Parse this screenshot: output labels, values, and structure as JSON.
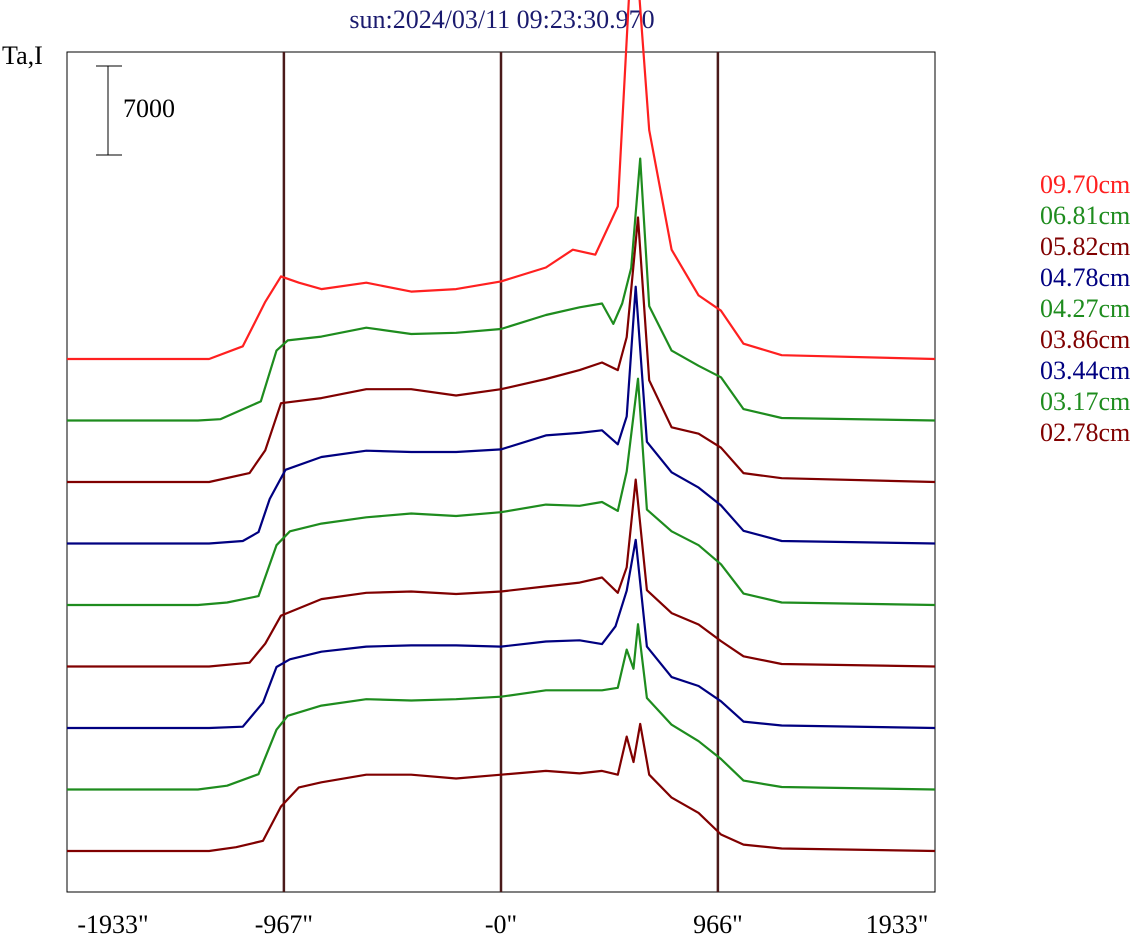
{
  "chart_data": {
    "type": "line",
    "title": "sun:2024/03/11 09:23:30.970",
    "ylabel": "Ta,I",
    "scale_bar_label": "7000",
    "x_ticks": [
      "-1933\"",
      "-967\"",
      "-0\"",
      "966\"",
      "1933\""
    ],
    "x_tick_values": [
      -1933,
      -967,
      0,
      966,
      1933
    ],
    "vertical_lines": [
      -967,
      0,
      966
    ],
    "xlim": [
      -1933,
      1933
    ],
    "grid": false,
    "legend_position": "right",
    "series": [
      {
        "name": "09.70cm",
        "color": "#ff2020",
        "points": [
          [
            -1933,
            0
          ],
          [
            -1300,
            0
          ],
          [
            -1150,
            1000
          ],
          [
            -1050,
            4500
          ],
          [
            -980,
            6500
          ],
          [
            -900,
            6000
          ],
          [
            -800,
            5500
          ],
          [
            -600,
            6000
          ],
          [
            -400,
            5300
          ],
          [
            -200,
            5500
          ],
          [
            0,
            6100
          ],
          [
            200,
            7200
          ],
          [
            320,
            8600
          ],
          [
            420,
            8200
          ],
          [
            520,
            12000
          ],
          [
            570,
            28500
          ],
          [
            610,
            30000
          ],
          [
            660,
            18000
          ],
          [
            760,
            8600
          ],
          [
            880,
            5000
          ],
          [
            980,
            3800
          ],
          [
            1080,
            1200
          ],
          [
            1250,
            300
          ],
          [
            1933,
            0
          ]
        ]
      },
      {
        "name": "06.81cm",
        "color": "#1e8c1e",
        "points": [
          [
            -1933,
            0
          ],
          [
            -1350,
            0
          ],
          [
            -1250,
            100
          ],
          [
            -1070,
            1500
          ],
          [
            -1000,
            5500
          ],
          [
            -950,
            6300
          ],
          [
            -800,
            6600
          ],
          [
            -600,
            7300
          ],
          [
            -400,
            6800
          ],
          [
            -200,
            6900
          ],
          [
            0,
            7200
          ],
          [
            200,
            8300
          ],
          [
            350,
            8900
          ],
          [
            450,
            9200
          ],
          [
            500,
            7600
          ],
          [
            540,
            9200
          ],
          [
            580,
            12000
          ],
          [
            620,
            20600
          ],
          [
            660,
            9000
          ],
          [
            760,
            5500
          ],
          [
            880,
            4300
          ],
          [
            980,
            3400
          ],
          [
            1080,
            900
          ],
          [
            1250,
            200
          ],
          [
            1933,
            0
          ]
        ]
      },
      {
        "name": "05.82cm",
        "color": "#800000",
        "points": [
          [
            -1933,
            0
          ],
          [
            -1750,
            0
          ],
          [
            -1300,
            0
          ],
          [
            -1120,
            700
          ],
          [
            -1050,
            2500
          ],
          [
            -980,
            6200
          ],
          [
            -800,
            6600
          ],
          [
            -600,
            7300
          ],
          [
            -400,
            7300
          ],
          [
            -200,
            6800
          ],
          [
            0,
            7300
          ],
          [
            200,
            8100
          ],
          [
            350,
            8800
          ],
          [
            450,
            9400
          ],
          [
            520,
            8800
          ],
          [
            560,
            11400
          ],
          [
            610,
            20800
          ],
          [
            660,
            8000
          ],
          [
            760,
            4300
          ],
          [
            880,
            3800
          ],
          [
            980,
            2700
          ],
          [
            1080,
            700
          ],
          [
            1250,
            300
          ],
          [
            1933,
            0
          ]
        ]
      },
      {
        "name": "04.78cm",
        "color": "#000080",
        "points": [
          [
            -1933,
            0
          ],
          [
            -1300,
            0
          ],
          [
            -1150,
            200
          ],
          [
            -1080,
            900
          ],
          [
            -1030,
            3500
          ],
          [
            -960,
            5800
          ],
          [
            -800,
            6800
          ],
          [
            -600,
            7300
          ],
          [
            -400,
            7200
          ],
          [
            -200,
            7200
          ],
          [
            0,
            7400
          ],
          [
            200,
            8500
          ],
          [
            350,
            8700
          ],
          [
            450,
            8900
          ],
          [
            520,
            7800
          ],
          [
            560,
            10000
          ],
          [
            600,
            20200
          ],
          [
            650,
            8000
          ],
          [
            760,
            5600
          ],
          [
            880,
            4400
          ],
          [
            980,
            3000
          ],
          [
            1080,
            1000
          ],
          [
            1250,
            200
          ],
          [
            1933,
            0
          ]
        ]
      },
      {
        "name": "04.27cm",
        "color": "#1e8c1e",
        "points": [
          [
            -1933,
            0
          ],
          [
            -1350,
            0
          ],
          [
            -1220,
            200
          ],
          [
            -1080,
            700
          ],
          [
            -1000,
            4700
          ],
          [
            -940,
            5800
          ],
          [
            -800,
            6400
          ],
          [
            -600,
            6900
          ],
          [
            -400,
            7200
          ],
          [
            -200,
            7000
          ],
          [
            0,
            7300
          ],
          [
            200,
            7900
          ],
          [
            350,
            7800
          ],
          [
            450,
            8100
          ],
          [
            520,
            7400
          ],
          [
            560,
            10500
          ],
          [
            610,
            17800
          ],
          [
            650,
            7500
          ],
          [
            760,
            5800
          ],
          [
            880,
            4700
          ],
          [
            980,
            3200
          ],
          [
            1080,
            900
          ],
          [
            1250,
            200
          ],
          [
            1933,
            0
          ]
        ]
      },
      {
        "name": "03.86cm",
        "color": "#800000",
        "points": [
          [
            -1933,
            0
          ],
          [
            -1650,
            0
          ],
          [
            -1300,
            0
          ],
          [
            -1120,
            300
          ],
          [
            -1050,
            1800
          ],
          [
            -980,
            4000
          ],
          [
            -800,
            5300
          ],
          [
            -600,
            5800
          ],
          [
            -400,
            5900
          ],
          [
            -200,
            5700
          ],
          [
            0,
            5900
          ],
          [
            200,
            6300
          ],
          [
            350,
            6600
          ],
          [
            450,
            7000
          ],
          [
            520,
            5800
          ],
          [
            560,
            7800
          ],
          [
            600,
            14700
          ],
          [
            650,
            6000
          ],
          [
            760,
            4200
          ],
          [
            880,
            3300
          ],
          [
            980,
            2000
          ],
          [
            1080,
            800
          ],
          [
            1250,
            200
          ],
          [
            1933,
            0
          ]
        ]
      },
      {
        "name": "03.44cm",
        "color": "#000080",
        "points": [
          [
            -1933,
            0
          ],
          [
            -1300,
            0
          ],
          [
            -1150,
            100
          ],
          [
            -1060,
            2000
          ],
          [
            -1000,
            4800
          ],
          [
            -940,
            5400
          ],
          [
            -800,
            6000
          ],
          [
            -600,
            6400
          ],
          [
            -400,
            6500
          ],
          [
            -200,
            6500
          ],
          [
            0,
            6400
          ],
          [
            200,
            6800
          ],
          [
            350,
            6900
          ],
          [
            450,
            6600
          ],
          [
            510,
            8000
          ],
          [
            560,
            10800
          ],
          [
            600,
            14800
          ],
          [
            650,
            6400
          ],
          [
            760,
            4000
          ],
          [
            880,
            3300
          ],
          [
            980,
            2100
          ],
          [
            1080,
            500
          ],
          [
            1250,
            200
          ],
          [
            1933,
            0
          ]
        ]
      },
      {
        "name": "03.17cm",
        "color": "#1e8c1e",
        "points": [
          [
            -1933,
            0
          ],
          [
            -1350,
            0
          ],
          [
            -1220,
            300
          ],
          [
            -1080,
            1200
          ],
          [
            -1000,
            4700
          ],
          [
            -950,
            5800
          ],
          [
            -800,
            6600
          ],
          [
            -600,
            7100
          ],
          [
            -400,
            7000
          ],
          [
            -200,
            7100
          ],
          [
            0,
            7300
          ],
          [
            200,
            7800
          ],
          [
            350,
            7800
          ],
          [
            450,
            7800
          ],
          [
            520,
            8000
          ],
          [
            560,
            11000
          ],
          [
            590,
            9500
          ],
          [
            610,
            13000
          ],
          [
            650,
            7200
          ],
          [
            760,
            5100
          ],
          [
            880,
            3800
          ],
          [
            980,
            2400
          ],
          [
            1080,
            700
          ],
          [
            1250,
            200
          ],
          [
            1933,
            0
          ]
        ]
      },
      {
        "name": "02.78cm",
        "color": "#800000",
        "points": [
          [
            -1933,
            0
          ],
          [
            -1650,
            0
          ],
          [
            -1300,
            0
          ],
          [
            -1180,
            300
          ],
          [
            -1060,
            800
          ],
          [
            -980,
            3500
          ],
          [
            -900,
            5000
          ],
          [
            -800,
            5400
          ],
          [
            -600,
            6000
          ],
          [
            -400,
            6000
          ],
          [
            -200,
            5700
          ],
          [
            0,
            6000
          ],
          [
            200,
            6300
          ],
          [
            350,
            6100
          ],
          [
            450,
            6300
          ],
          [
            520,
            6000
          ],
          [
            560,
            9000
          ],
          [
            590,
            7000
          ],
          [
            620,
            10000
          ],
          [
            660,
            6000
          ],
          [
            760,
            4200
          ],
          [
            880,
            3000
          ],
          [
            980,
            1300
          ],
          [
            1080,
            500
          ],
          [
            1250,
            200
          ],
          [
            1933,
            0
          ]
        ]
      }
    ]
  }
}
